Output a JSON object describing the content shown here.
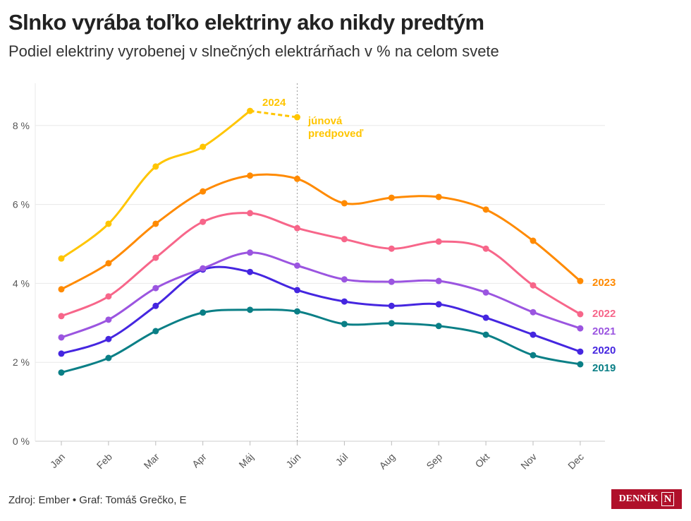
{
  "title": "Slnko vyrába toľko elektriny ako nikdy predtým",
  "subtitle": "Podiel elektriny vyrobenej v slnečných elektrárňach v % na celom svete",
  "source": "Zdroj: Ember • Graf: Tomáš Grečko, E",
  "logo": {
    "text": "DENNÍK",
    "mark": "N",
    "color": "#b0102a"
  },
  "chart_data": {
    "type": "line",
    "categories": [
      "Jan",
      "Feb",
      "Mar",
      "Apr",
      "Máj",
      "Jún",
      "Júl",
      "Aug",
      "Sep",
      "Okt",
      "Nov",
      "Dec"
    ],
    "ylim": [
      0,
      8.8
    ],
    "yticks": [
      0,
      2,
      4,
      6,
      8
    ],
    "ytick_labels": [
      "0 %",
      "2 %",
      "4 %",
      "6 %",
      "8 %"
    ],
    "grid": true,
    "series": [
      {
        "name": "2019",
        "color": "#0a7f86",
        "values": [
          1.74,
          2.11,
          2.79,
          3.26,
          3.33,
          3.29,
          2.97,
          2.99,
          2.92,
          2.7,
          2.18,
          1.95
        ]
      },
      {
        "name": "2020",
        "color": "#4526e0",
        "values": [
          2.22,
          2.59,
          3.43,
          4.35,
          4.29,
          3.83,
          3.54,
          3.43,
          3.47,
          3.13,
          2.7,
          2.27
        ]
      },
      {
        "name": "2021",
        "color": "#9b55e0",
        "values": [
          2.63,
          3.08,
          3.88,
          4.38,
          4.78,
          4.45,
          4.1,
          4.04,
          4.06,
          3.77,
          3.27,
          2.86
        ]
      },
      {
        "name": "2022",
        "color": "#f7668a",
        "values": [
          3.17,
          3.67,
          4.65,
          5.56,
          5.78,
          5.4,
          5.12,
          4.88,
          5.06,
          4.88,
          3.95,
          3.22
        ]
      },
      {
        "name": "2023",
        "color": "#ff8a00",
        "values": [
          3.85,
          4.51,
          5.51,
          6.33,
          6.73,
          6.65,
          6.03,
          6.17,
          6.19,
          5.87,
          5.08,
          4.06
        ]
      },
      {
        "name": "2024",
        "color": "#ffc500",
        "values": [
          4.63,
          5.51,
          6.96,
          7.46,
          8.37,
          null,
          null,
          null,
          null,
          null,
          null,
          null
        ],
        "forecast": {
          "category": "Jún",
          "value": 8.21,
          "label": "júnová predpoveď"
        }
      }
    ]
  }
}
